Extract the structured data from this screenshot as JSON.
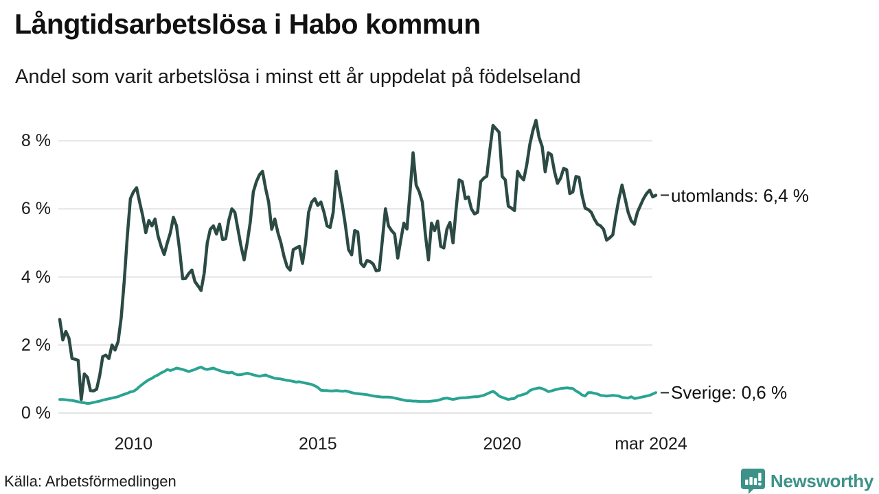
{
  "header": {
    "title": "Långtidsarbetslösa i Habo kommun",
    "subtitle": "Andel som varit arbetslösa i minst ett år uppdelat på födelseland"
  },
  "footer": {
    "source": "Källa: Arbetsförmedlingen",
    "brand": "Newsworthy"
  },
  "annotations": {
    "utomlands_label": "utomlands: 6,4 %",
    "sverige_label": "Sverige: 0,6 %"
  },
  "colors": {
    "utomlands": "#2b4a44",
    "sverige": "#2aa492",
    "brand": "#3c9288",
    "grid": "#e4e4e4",
    "tick_dash": "#4a4a4a",
    "text": "#1a1a1a"
  },
  "chart_data": {
    "type": "line",
    "title": "Långtidsarbetslösa i Habo kommun",
    "subtitle": "Andel som varit arbetslösa i minst ett år uppdelat på födelseland",
    "unit": "%",
    "frequency": "monthly",
    "x_start": "2008-01",
    "x_end": "2024-03",
    "ylim": [
      0,
      8.6
    ],
    "grid": "horizontal",
    "legend_position": "right-end-labels",
    "y_ticks": [
      {
        "value": 0,
        "label": "0 %"
      },
      {
        "value": 2,
        "label": "2 %"
      },
      {
        "value": 4,
        "label": "4 %"
      },
      {
        "value": 6,
        "label": "6 %"
      },
      {
        "value": 8,
        "label": "8 %"
      }
    ],
    "x_ticks": [
      {
        "month_index": 24,
        "label": "2010"
      },
      {
        "month_index": 84,
        "label": "2015"
      },
      {
        "month_index": 144,
        "label": "2020"
      },
      {
        "month_index": 194,
        "label": "mar 2024"
      }
    ],
    "series": [
      {
        "name": "utomlands",
        "end_value_label": "utomlands: 6,4 %",
        "end_value": 6.4,
        "values": [
          2.75,
          2.15,
          2.4,
          2.2,
          1.6,
          1.58,
          1.55,
          0.4,
          1.15,
          1.05,
          0.66,
          0.65,
          0.7,
          1.1,
          1.66,
          1.7,
          1.6,
          2.0,
          1.85,
          2.1,
          2.8,
          3.9,
          5.2,
          6.3,
          6.5,
          6.62,
          6.2,
          5.8,
          5.3,
          5.66,
          5.5,
          5.7,
          5.2,
          4.9,
          4.66,
          5.0,
          5.3,
          5.75,
          5.5,
          4.8,
          3.95,
          3.96,
          4.1,
          4.2,
          3.86,
          3.74,
          3.6,
          4.1,
          5.0,
          5.4,
          5.5,
          5.26,
          5.55,
          5.1,
          5.12,
          5.66,
          6.0,
          5.9,
          5.4,
          4.9,
          4.5,
          5.0,
          5.6,
          6.5,
          6.8,
          7.0,
          7.1,
          6.6,
          6.2,
          5.4,
          5.7,
          5.3,
          5.0,
          4.6,
          4.3,
          4.2,
          4.8,
          4.85,
          4.9,
          4.4,
          5.0,
          5.9,
          6.2,
          6.3,
          6.1,
          6.2,
          5.9,
          5.5,
          5.45,
          5.9,
          7.1,
          6.6,
          6.1,
          5.5,
          4.8,
          4.65,
          5.36,
          5.32,
          4.4,
          4.3,
          4.48,
          4.45,
          4.38,
          4.18,
          4.2,
          5.08,
          6.0,
          5.5,
          5.36,
          5.26,
          4.55,
          5.08,
          5.58,
          5.41,
          6.5,
          7.65,
          6.7,
          6.5,
          6.2,
          5.25,
          4.5,
          5.58,
          5.36,
          5.64,
          4.9,
          4.85,
          5.4,
          5.6,
          5.0,
          6.0,
          6.85,
          6.8,
          6.3,
          6.35,
          6.0,
          5.85,
          5.9,
          6.8,
          6.9,
          6.96,
          7.74,
          8.45,
          8.35,
          8.25,
          6.95,
          6.85,
          6.08,
          6.02,
          5.95,
          7.1,
          6.95,
          6.85,
          7.3,
          7.9,
          8.3,
          8.6,
          8.1,
          7.83,
          7.09,
          7.65,
          7.59,
          7.1,
          6.75,
          6.9,
          7.19,
          7.15,
          6.45,
          6.5,
          6.95,
          6.93,
          6.4,
          6.02,
          5.98,
          5.9,
          5.7,
          5.55,
          5.5,
          5.4,
          5.08,
          5.15,
          5.24,
          5.8,
          6.3,
          6.7,
          6.3,
          5.9,
          5.65,
          5.55,
          5.9,
          6.1,
          6.3,
          6.45,
          6.55,
          6.35,
          6.4
        ]
      },
      {
        "name": "Sverige",
        "end_value_label": "Sverige: 0,6 %",
        "end_value": 0.6,
        "values": [
          0.4,
          0.4,
          0.39,
          0.38,
          0.37,
          0.35,
          0.33,
          0.31,
          0.3,
          0.28,
          0.29,
          0.31,
          0.33,
          0.35,
          0.38,
          0.4,
          0.42,
          0.44,
          0.46,
          0.48,
          0.52,
          0.55,
          0.58,
          0.62,
          0.64,
          0.7,
          0.78,
          0.85,
          0.92,
          0.98,
          1.02,
          1.08,
          1.12,
          1.18,
          1.22,
          1.28,
          1.25,
          1.28,
          1.32,
          1.3,
          1.28,
          1.25,
          1.22,
          1.25,
          1.28,
          1.32,
          1.35,
          1.3,
          1.28,
          1.3,
          1.32,
          1.28,
          1.25,
          1.22,
          1.2,
          1.18,
          1.2,
          1.15,
          1.12,
          1.13,
          1.15,
          1.17,
          1.15,
          1.12,
          1.1,
          1.08,
          1.1,
          1.12,
          1.08,
          1.05,
          1.02,
          1.01,
          1.0,
          0.98,
          0.96,
          0.95,
          0.93,
          0.91,
          0.92,
          0.9,
          0.88,
          0.86,
          0.84,
          0.8,
          0.75,
          0.67,
          0.66,
          0.66,
          0.65,
          0.65,
          0.66,
          0.65,
          0.64,
          0.65,
          0.63,
          0.6,
          0.58,
          0.57,
          0.56,
          0.55,
          0.54,
          0.52,
          0.5,
          0.49,
          0.48,
          0.47,
          0.47,
          0.47,
          0.46,
          0.44,
          0.42,
          0.4,
          0.38,
          0.36,
          0.36,
          0.35,
          0.35,
          0.34,
          0.34,
          0.34,
          0.34,
          0.35,
          0.36,
          0.37,
          0.4,
          0.43,
          0.44,
          0.42,
          0.4,
          0.42,
          0.44,
          0.45,
          0.45,
          0.46,
          0.47,
          0.48,
          0.48,
          0.5,
          0.52,
          0.56,
          0.6,
          0.64,
          0.58,
          0.5,
          0.46,
          0.43,
          0.4,
          0.42,
          0.43,
          0.5,
          0.52,
          0.55,
          0.58,
          0.66,
          0.7,
          0.72,
          0.74,
          0.72,
          0.68,
          0.63,
          0.65,
          0.68,
          0.7,
          0.72,
          0.73,
          0.74,
          0.73,
          0.72,
          0.65,
          0.6,
          0.53,
          0.5,
          0.6,
          0.6,
          0.58,
          0.56,
          0.52,
          0.51,
          0.5,
          0.51,
          0.52,
          0.51,
          0.5,
          0.46,
          0.45,
          0.44,
          0.48,
          0.43,
          0.44,
          0.46,
          0.48,
          0.5,
          0.52,
          0.56,
          0.6
        ]
      }
    ]
  }
}
